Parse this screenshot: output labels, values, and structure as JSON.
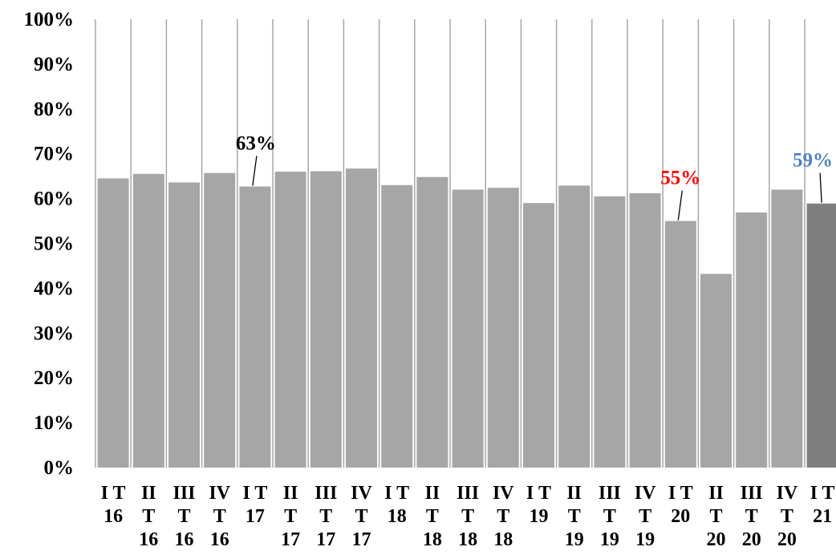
{
  "chart_data": {
    "type": "bar",
    "title": "",
    "xlabel": "",
    "ylabel": "",
    "ylim": [
      0,
      1
    ],
    "y_ticks": [
      "0%",
      "10%",
      "20%",
      "30%",
      "40%",
      "50%",
      "60%",
      "70%",
      "80%",
      "90%",
      "100%"
    ],
    "grid": "vertical separators between bars",
    "legend": "none",
    "categories": [
      [
        "I T",
        "16"
      ],
      [
        "II",
        "T",
        "16"
      ],
      [
        "III",
        "T",
        "16"
      ],
      [
        "IV",
        "T",
        "16"
      ],
      [
        "I T",
        "17"
      ],
      [
        "II",
        "T",
        "17"
      ],
      [
        "III",
        "T",
        "17"
      ],
      [
        "IV",
        "T",
        "17"
      ],
      [
        "I T",
        "18"
      ],
      [
        "II",
        "T",
        "18"
      ],
      [
        "III",
        "T",
        "18"
      ],
      [
        "IV",
        "T",
        "18"
      ],
      [
        "I T",
        "19"
      ],
      [
        "II",
        "T",
        "19"
      ],
      [
        "III",
        "T",
        "19"
      ],
      [
        "IV",
        "T",
        "19"
      ],
      [
        "I T",
        "20"
      ],
      [
        "II",
        "T",
        "20"
      ],
      [
        "III",
        "T",
        "20"
      ],
      [
        "IV",
        "T",
        "20"
      ],
      [
        "I T",
        "21"
      ]
    ],
    "values": [
      0.645,
      0.655,
      0.636,
      0.657,
      0.627,
      0.66,
      0.661,
      0.667,
      0.63,
      0.648,
      0.62,
      0.624,
      0.59,
      0.629,
      0.605,
      0.612,
      0.55,
      0.432,
      0.569,
      0.62,
      0.589
    ],
    "bar_color": "#a6a6a6",
    "highlight_bar_color": "#7f7f7f",
    "highlight_index": 20,
    "annotations": [
      {
        "index": 4,
        "text": "63%",
        "color": "#000000"
      },
      {
        "index": 16,
        "text": "55%",
        "color": "#ff0000"
      },
      {
        "index": 20,
        "text": "59%",
        "color": "#4f81bd"
      }
    ]
  }
}
